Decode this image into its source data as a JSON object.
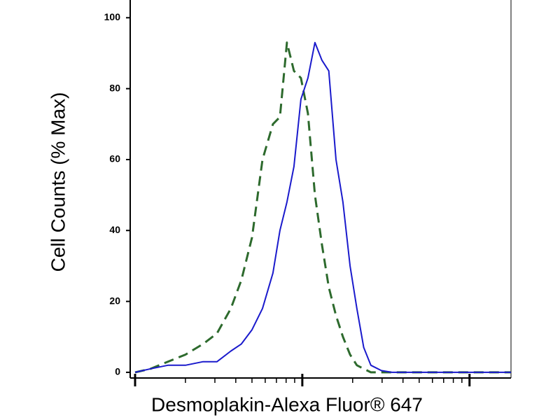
{
  "chart_data": {
    "type": "line",
    "x_label": "Desmoplakin-Alexa Fluor® 647",
    "y_label": "Cell Counts (% Max)",
    "xscale": "log",
    "xlim": [
      1,
      177
    ],
    "xticks": [
      1,
      10,
      100
    ],
    "ylim": [
      -1.6,
      105
    ],
    "yticks": [
      0,
      20,
      40,
      60,
      80,
      100
    ],
    "x": [
      1,
      1.24,
      1.57,
      2.0,
      2.55,
      3.09,
      3.74,
      4.32,
      5.0,
      5.78,
      6.67,
      7.35,
      8.09,
      8.91,
      9.81,
      10.8,
      11.9,
      13.1,
      14.4,
      15.9,
      17.5,
      19.3,
      21.2,
      23.3,
      25.7,
      29.7,
      34.3,
      50.5,
      81.7,
      177
    ],
    "series": [
      {
        "color": "#2d6a2d",
        "dashed": true,
        "values": [
          0,
          1,
          3,
          5,
          8,
          11,
          18,
          26,
          38,
          60,
          70,
          72,
          93,
          85,
          83,
          73,
          50,
          36,
          24,
          16,
          10,
          5,
          2,
          1,
          0,
          0,
          0,
          0,
          0,
          0
        ]
      },
      {
        "color": "#1a1acc",
        "dashed": false,
        "values": [
          0,
          1,
          2,
          2,
          3,
          3,
          6,
          8,
          12,
          18,
          28,
          40,
          48,
          58,
          77,
          83,
          93,
          88,
          85,
          60,
          48,
          30,
          18,
          7,
          2,
          0.5,
          0,
          0,
          0,
          0
        ]
      }
    ]
  }
}
